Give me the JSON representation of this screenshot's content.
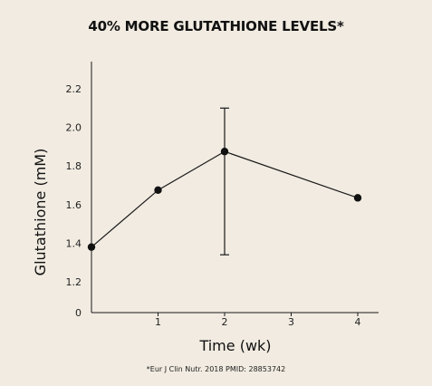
{
  "chart_data": {
    "type": "line",
    "title": "40% MORE GLUTATHIONE LEVELS*",
    "xlabel": "Time (wk)",
    "ylabel": "Glutathione (mM)",
    "x_ticks": [
      "1",
      "2",
      "3",
      "4"
    ],
    "y_ticks": [
      "0",
      "1.2",
      "1.4",
      "1.6",
      "1.8",
      "2.0",
      "2.2"
    ],
    "xlim": [
      0,
      4.35
    ],
    "ylim_break": [
      1.2,
      2.3
    ],
    "grid": false,
    "series": [
      {
        "x": [
          0,
          1,
          2,
          4
        ],
        "values": [
          1.38,
          1.675,
          1.875,
          1.635
        ],
        "error_bar": {
          "x": 2,
          "low": 1.34,
          "high": 2.1
        }
      }
    ],
    "footnote": "*Eur J Clin Nutr. 2018 PMID: 28853742",
    "colors": {
      "background": "#f1ebe1",
      "line": "#1a1a1a",
      "marker": "#111111"
    }
  }
}
